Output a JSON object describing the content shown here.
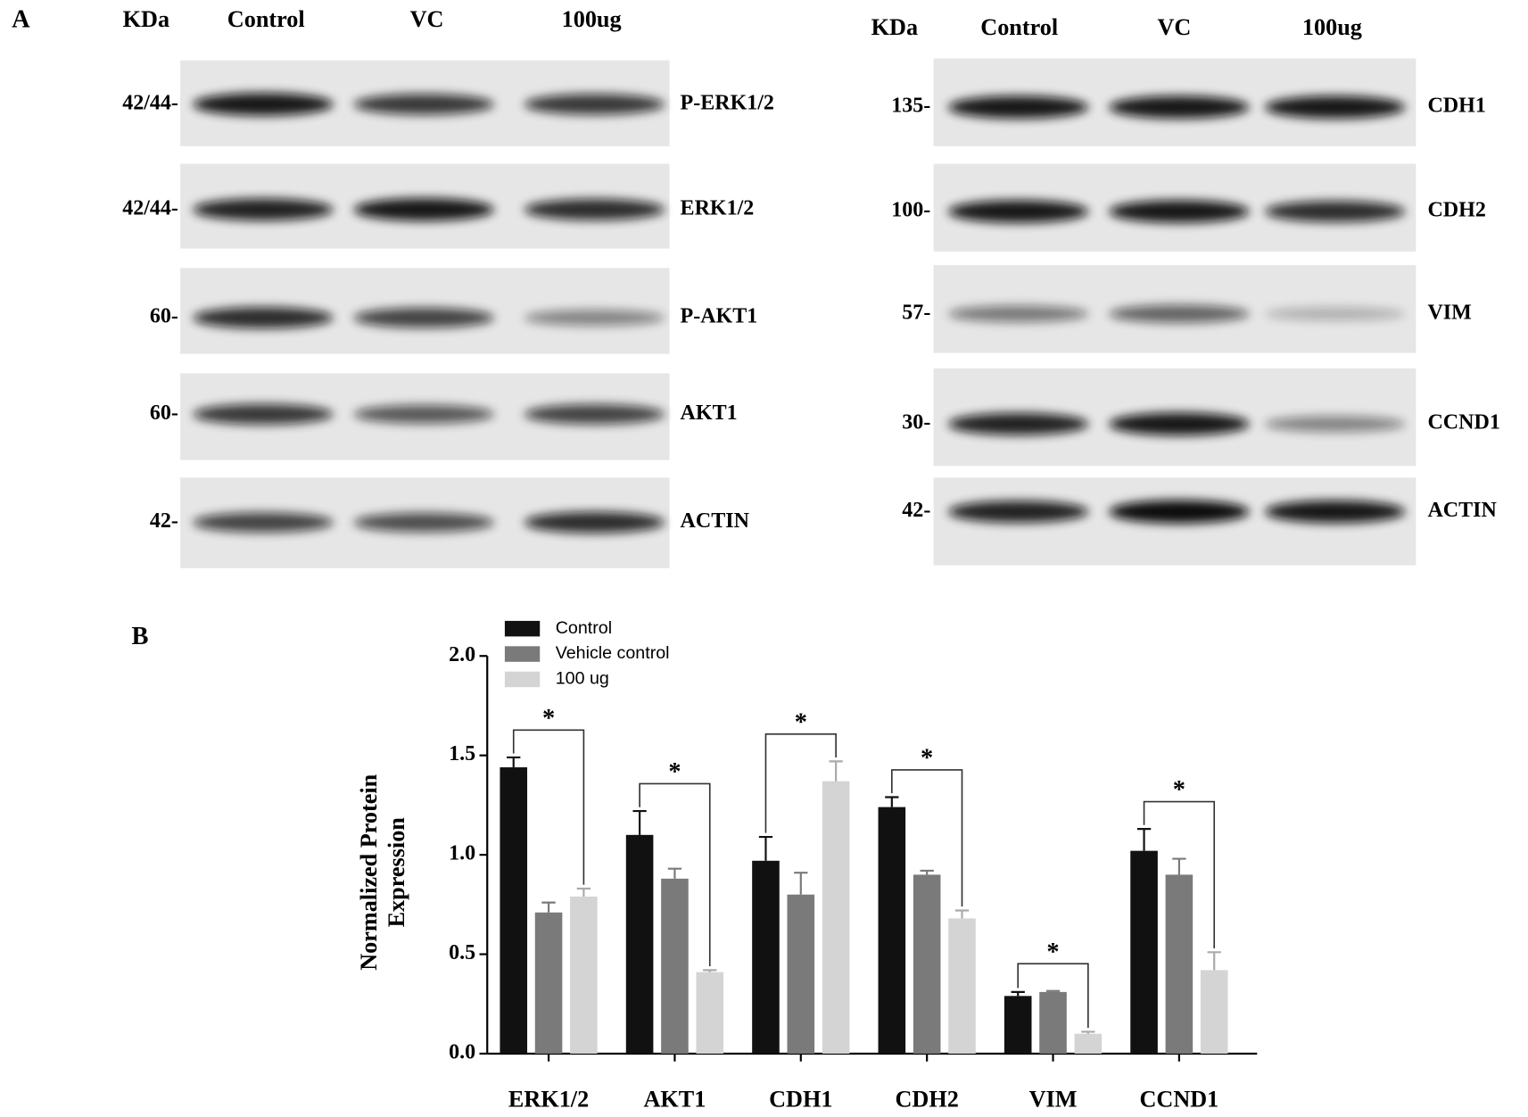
{
  "panel_a": {
    "label": "A",
    "blots": [
      {
        "header": {
          "unit": "KDa",
          "lanes": [
            "Control",
            "VC",
            "100ug"
          ]
        },
        "rows": [
          {
            "marker": "42/44-",
            "protein": "P-ERK1/2"
          },
          {
            "marker": "42/44-",
            "protein": "ERK1/2"
          },
          {
            "marker": "60-",
            "protein": "P-AKT1"
          },
          {
            "marker": "60-",
            "protein": "AKT1"
          },
          {
            "marker": "42-",
            "protein": "ACTIN"
          }
        ]
      },
      {
        "header": {
          "unit": "KDa",
          "lanes": [
            "Control",
            "VC",
            "100ug"
          ]
        },
        "rows": [
          {
            "marker": "135-",
            "protein": "CDH1"
          },
          {
            "marker": "100-",
            "protein": "CDH2"
          },
          {
            "marker": "57-",
            "protein": "VIM"
          },
          {
            "marker": "30-",
            "protein": "CCND1"
          },
          {
            "marker": "42-",
            "protein": "ACTIN"
          }
        ]
      }
    ]
  },
  "chart_data": {
    "type": "bar",
    "panel_label": "B",
    "ylabel": [
      "Normalized Protein",
      "Expression"
    ],
    "categories": [
      "ERK1/2",
      "AKT1",
      "CDH1",
      "CDH2",
      "VIM",
      "CCND1"
    ],
    "series": [
      {
        "name": "Control",
        "color": "#111111",
        "values": [
          1.44,
          1.1,
          0.97,
          1.24,
          0.29,
          1.02
        ],
        "errors": [
          0.05,
          0.12,
          0.12,
          0.05,
          0.02,
          0.11
        ]
      },
      {
        "name": "Vehicle control",
        "color": "#7a7a7a",
        "values": [
          0.71,
          0.88,
          0.8,
          0.9,
          0.31,
          0.9
        ],
        "errors": [
          0.05,
          0.05,
          0.11,
          0.02,
          0.005,
          0.08
        ]
      },
      {
        "name": "100 ug",
        "color": "#d4d4d4",
        "values": [
          0.79,
          0.41,
          1.37,
          0.68,
          0.1,
          0.42
        ],
        "errors": [
          0.04,
          0.01,
          0.1,
          0.04,
          0.01,
          0.09
        ]
      }
    ],
    "ylim": [
      0,
      2
    ],
    "yticks": [
      {
        "value": 0,
        "label": "0.0"
      },
      0.5,
      {
        "value": 1,
        "label": "1.0"
      },
      1.5,
      {
        "value": 2,
        "label": "2.0"
      }
    ],
    "annotations": [
      "*",
      "*",
      "*",
      "*",
      "*",
      "*"
    ]
  }
}
